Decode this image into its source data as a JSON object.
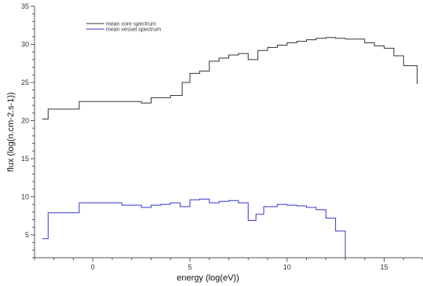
{
  "chart_data": {
    "type": "line",
    "step": true,
    "title": "",
    "xlabel": "energy (log(eV))",
    "ylabel": "flux (log(n.cm-2.s-1))",
    "xlim": [
      -3,
      17
    ],
    "ylim": [
      2,
      35
    ],
    "xticks": [
      0,
      5,
      10,
      15
    ],
    "yticks": [
      5,
      10,
      15,
      20,
      25,
      30,
      35
    ],
    "grid": false,
    "legend_position": "top-left",
    "series": [
      {
        "name": "mean core spectrum",
        "color": "#333333",
        "x": [
          -2.6,
          -2.3,
          -0.7,
          1.2,
          2.5,
          3.0,
          4.0,
          4.6,
          5.0,
          5.5,
          6.0,
          6.5,
          7.0,
          7.5,
          8.0,
          8.5,
          9.0,
          9.5,
          10.0,
          10.5,
          11.0,
          11.5,
          12.0,
          12.5,
          13.0,
          14.0,
          14.5,
          15.0,
          15.5,
          16.0,
          16.7
        ],
        "y": [
          20.2,
          21.5,
          22.5,
          22.5,
          22.3,
          23.0,
          23.3,
          25.0,
          26.2,
          26.5,
          27.8,
          28.2,
          28.6,
          28.8,
          28.0,
          29.2,
          29.6,
          29.9,
          30.2,
          30.4,
          30.6,
          30.8,
          30.9,
          30.8,
          30.7,
          30.2,
          29.8,
          29.5,
          28.5,
          27.2,
          24.8
        ]
      },
      {
        "name": "mean vessel spectrum",
        "color": "#3333cc",
        "x": [
          -2.6,
          -2.3,
          -0.7,
          0.5,
          1.5,
          2.5,
          3.0,
          3.5,
          4.0,
          4.5,
          5.0,
          5.5,
          6.0,
          6.5,
          7.0,
          7.5,
          8.0,
          8.4,
          8.8,
          9.5,
          10.0,
          10.5,
          11.0,
          11.5,
          12.0,
          12.5,
          13.0
        ],
        "y": [
          4.5,
          7.9,
          9.2,
          9.2,
          8.9,
          8.6,
          8.9,
          9.0,
          9.2,
          8.7,
          9.6,
          9.7,
          9.2,
          9.4,
          9.5,
          9.2,
          6.9,
          7.7,
          8.7,
          9.0,
          8.9,
          8.8,
          8.6,
          8.3,
          7.2,
          5.5,
          2.0
        ]
      }
    ]
  }
}
